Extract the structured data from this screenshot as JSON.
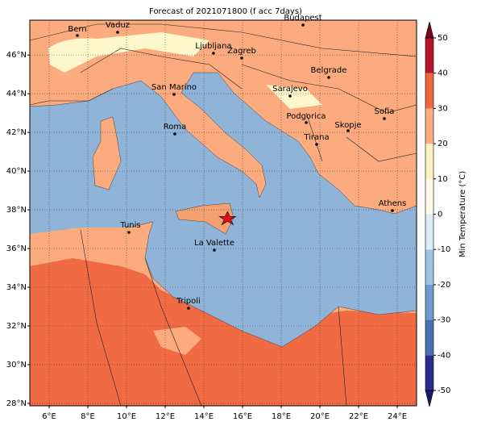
{
  "title": "Forecast of 2021071800 (f acc 7days)",
  "map": {
    "xlim": [
      5,
      25
    ],
    "ylim": [
      27.875,
      47.8
    ],
    "xticks": [
      {
        "value": 6,
        "label": "6°E"
      },
      {
        "value": 8,
        "label": "8°E"
      },
      {
        "value": 10,
        "label": "10°E"
      },
      {
        "value": 12,
        "label": "12°E"
      },
      {
        "value": 14,
        "label": "14°E"
      },
      {
        "value": 16,
        "label": "16°E"
      },
      {
        "value": 18,
        "label": "18°E"
      },
      {
        "value": 20,
        "label": "20°E"
      },
      {
        "value": 22,
        "label": "22°E"
      },
      {
        "value": 24,
        "label": "24°E"
      }
    ],
    "yticks": [
      {
        "value": 28,
        "label": "28°N"
      },
      {
        "value": 30,
        "label": "30°N"
      },
      {
        "value": 32,
        "label": "32°N"
      },
      {
        "value": 34,
        "label": "34°N"
      },
      {
        "value": 36,
        "label": "36°N"
      },
      {
        "value": 38,
        "label": "38°N"
      },
      {
        "value": 40,
        "label": "40°N"
      },
      {
        "value": 42,
        "label": "42°N"
      },
      {
        "value": 44,
        "label": "44°N"
      },
      {
        "value": 46,
        "label": "46°N"
      }
    ],
    "grid": true
  },
  "cities": [
    "Bern",
    "Vaduz",
    "Budapest",
    "Ljubljana",
    "Zagreb",
    "Belgrade",
    "San Marino",
    "Sarajevo",
    "Sofia",
    "Podgorica",
    "Skopje",
    "Roma",
    "Tirana",
    "Athens",
    "Tunis",
    "La Valette",
    "Tripoli"
  ],
  "colorbar": {
    "label": "Min Temperature (°C)",
    "lim": [
      -50,
      50
    ],
    "ticks": [
      -50,
      -40,
      -30,
      -20,
      -10,
      0,
      10,
      20,
      30,
      40,
      50
    ],
    "colors": [
      "#2a2c8a",
      "#4a6fb0",
      "#6d9ccb",
      "#9ec5e0",
      "#dbeef4",
      "#fefbe6",
      "#fdf1c0",
      "#fcac7e",
      "#f0663f",
      "#b5162b"
    ],
    "under_color": "#1a1a6a",
    "over_color": "#7f0020"
  }
}
